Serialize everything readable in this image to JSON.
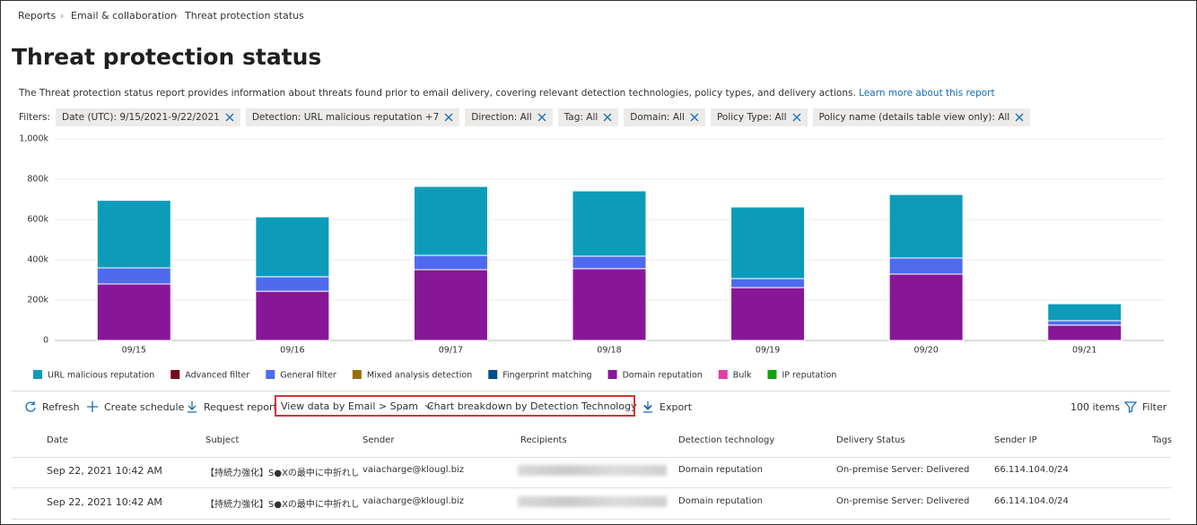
{
  "breadcrumb": [
    "Reports",
    "Email & collaboration",
    "Threat protection status"
  ],
  "title": "Threat protection status",
  "description": "The Threat protection status report provides information about threats found prior to email delivery, covering relevant detection technologies, policy types, and delivery actions.",
  "learn_more": "Learn more about this report",
  "filters_label": "Filters:",
  "filters": [
    "Date (UTC): 9/15/2021-9/22/2021",
    "Detection: URL malicious reputation +7",
    "Direction: All",
    "Tag: All",
    "Domain: All",
    "Policy Type: All",
    "Policy name (details table view only): All"
  ],
  "chart_data": {
    "type": "stacked-bar",
    "categories": [
      "09/15",
      "09/16",
      "09/17",
      "09/18",
      "09/19",
      "09/20",
      "09/21"
    ],
    "ylim": [
      0,
      1000000
    ],
    "yticks": [
      0,
      {
        "value": 200000,
        "label": "200k"
      },
      {
        "value": 400000,
        "label": "400k"
      },
      {
        "value": 600000,
        "label": "600k"
      },
      {
        "value": 800000,
        "label": "800k"
      },
      {
        "value": 1000000,
        "label": "1,000k"
      }
    ],
    "grid": true,
    "legend": "bottom",
    "series": [
      {
        "name": "URL malicious reputation",
        "color": "#0c9cba",
        "values": [
          335000,
          297000,
          342000,
          324000,
          355000,
          315000,
          84000
        ]
      },
      {
        "name": "Advanced filter",
        "color": "#750b1c",
        "values": [
          0,
          0,
          0,
          0,
          0,
          0,
          0
        ]
      },
      {
        "name": "General filter",
        "color": "#4f6bed",
        "values": [
          80000,
          72000,
          71000,
          62000,
          45000,
          80000,
          22000
        ]
      },
      {
        "name": "Mixed analysis detection",
        "color": "#986f0b",
        "values": [
          0,
          0,
          0,
          0,
          0,
          0,
          0
        ]
      },
      {
        "name": "Fingerprint matching",
        "color": "#004e8c",
        "values": [
          0,
          0,
          0,
          0,
          0,
          0,
          0
        ]
      },
      {
        "name": "Domain reputation",
        "color": "#881798",
        "values": [
          280000,
          244000,
          351000,
          356000,
          262000,
          329000,
          76000
        ]
      },
      {
        "name": "Bulk",
        "color": "#e43ba6",
        "values": [
          0,
          0,
          0,
          0,
          0,
          0,
          0
        ]
      },
      {
        "name": "IP reputation",
        "color": "#13a10e",
        "values": [
          0,
          0,
          0,
          0,
          0,
          0,
          0
        ]
      }
    ]
  },
  "toolbar": {
    "refresh": "Refresh",
    "create_schedule": "Create schedule",
    "request_report": "Request report",
    "view_data": "View data by Email > Spam",
    "chart_breakdown": "Chart breakdown by Detection Technology",
    "export": "Export",
    "items": "100 items",
    "filter": "Filter"
  },
  "table": {
    "headers": [
      "Date",
      "Subject",
      "Sender",
      "Recipients",
      "Detection technology",
      "Delivery Status",
      "Sender IP",
      "Tags"
    ],
    "rows": [
      {
        "date": "Sep 22, 2021 10:42 AM",
        "subject": "【持続力強化】S●Xの最中に中折れし",
        "sender": "vaiacharge@klougl.biz",
        "detection_technology": "Domain reputation",
        "delivery_status": "On-premise Server: Delivered",
        "sender_ip": "66.114.104.0/24"
      },
      {
        "date": "Sep 22, 2021 10:42 AM",
        "subject": "【持続力強化】S●Xの最中に中折れし",
        "sender": "vaiacharge@klougl.biz",
        "detection_technology": "Domain reputation",
        "delivery_status": "On-premise Server: Delivered",
        "sender_ip": "66.114.104.0/24"
      }
    ]
  }
}
